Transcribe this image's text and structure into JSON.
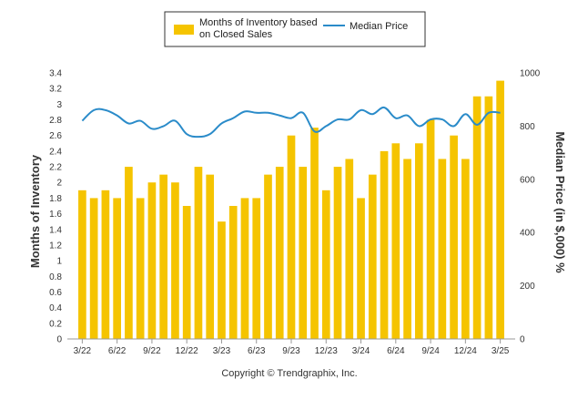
{
  "legend": {
    "bar_label_line1": "Months of Inventory based",
    "bar_label_line2": "on Closed Sales",
    "line_label": "Median Price"
  },
  "footer": "Copyright © Trendgraphix, Inc.",
  "colors": {
    "bar": "#F5C400",
    "line": "#2A8BC9",
    "axis": "#999999"
  },
  "chart_data": {
    "type": "bar",
    "title": "",
    "xlabel": "",
    "ylabel": "Months of Inventory",
    "ylabel_right": "Median Price (in $,000) %",
    "ylim": [
      0,
      3.4
    ],
    "ylim_right": [
      0,
      1000
    ],
    "y_ticks": [
      "0",
      "0.2",
      "0.4",
      "0.6",
      "0.8",
      "1",
      "1.2",
      "1.4",
      "1.6",
      "1.8",
      "2",
      "2.2",
      "2.4",
      "2.6",
      "2.8",
      "3",
      "3.2",
      "3.4"
    ],
    "y_right_ticks": [
      "0",
      "200",
      "400",
      "600",
      "800",
      "1000"
    ],
    "x_tick_labels": [
      "3/22",
      "6/22",
      "9/22",
      "12/22",
      "3/23",
      "6/23",
      "9/23",
      "12/23",
      "3/24",
      "6/24",
      "9/24",
      "12/24",
      "3/25"
    ],
    "categories": [
      "3/22",
      "4/22",
      "5/22",
      "6/22",
      "7/22",
      "8/22",
      "9/22",
      "10/22",
      "11/22",
      "12/22",
      "1/23",
      "2/23",
      "3/23",
      "4/23",
      "5/23",
      "6/23",
      "7/23",
      "8/23",
      "9/23",
      "10/23",
      "11/23",
      "12/23",
      "1/24",
      "2/24",
      "3/24",
      "4/24",
      "5/24",
      "6/24",
      "7/24",
      "8/24",
      "9/24",
      "10/24",
      "11/24",
      "12/24",
      "1/25",
      "2/25",
      "3/25"
    ],
    "series": [
      {
        "name": "Months of Inventory based on Closed Sales",
        "type": "bar",
        "axis": "left",
        "values": [
          1.9,
          1.8,
          1.9,
          1.8,
          2.2,
          1.8,
          2.0,
          2.1,
          2.0,
          1.7,
          2.2,
          2.1,
          1.5,
          1.7,
          1.8,
          1.8,
          2.1,
          2.2,
          2.6,
          2.2,
          2.7,
          1.9,
          2.2,
          2.3,
          1.8,
          2.1,
          2.4,
          2.5,
          2.3,
          2.5,
          2.8,
          2.3,
          2.6,
          2.3,
          3.1,
          3.1,
          3.3
        ]
      },
      {
        "name": "Median Price",
        "type": "line",
        "axis": "right",
        "values": [
          820,
          860,
          860,
          840,
          810,
          820,
          790,
          800,
          820,
          770,
          760,
          770,
          810,
          830,
          855,
          850,
          850,
          840,
          830,
          850,
          780,
          800,
          825,
          825,
          860,
          845,
          870,
          830,
          840,
          800,
          825,
          825,
          800,
          845,
          805,
          850,
          850
        ]
      }
    ]
  }
}
